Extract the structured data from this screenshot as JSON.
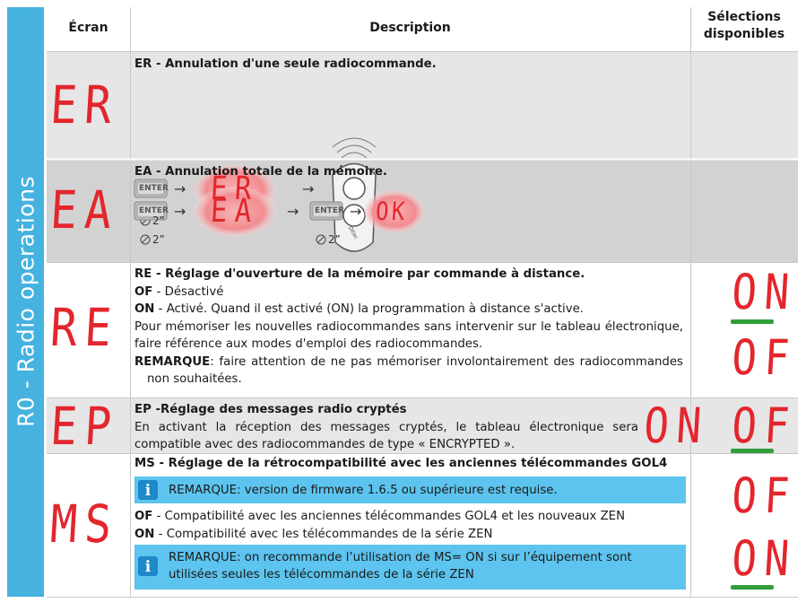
{
  "sidebar": {
    "title": "R0 - Radio operations"
  },
  "table": {
    "headers": [
      "Écran",
      "Description",
      "Sélections disponibles"
    ],
    "rows": [
      {
        "screen": "ER",
        "title": "ER - Annulation d'une seule radiocommande.",
        "diagram": {
          "button": "ENTER",
          "display": "ER",
          "timer": "2”",
          "remote_brand": "Ditec"
        }
      },
      {
        "screen": "EA",
        "title": "EA - Annulation totale de la mémoire.",
        "diagram": {
          "button": "ENTER",
          "display": "EA",
          "timer": "2”",
          "button2": "ENTER",
          "timer2": "2”",
          "result": "OK"
        }
      },
      {
        "screen": "RE",
        "title": "RE - Réglage d'ouverture de la mémoire par commande à distance.",
        "lines": [
          {
            "key": "OF",
            "text": " - Désactivé"
          },
          {
            "key": "ON",
            "text": " - Activé. Quand il est activé (ON) la programmation à distance s'active."
          }
        ],
        "paragraph": "Pour mémoriser les nouvelles radiocommandes sans intervenir sur le tableau électronique, faire référence aux modes d'emploi des radiocommandes.",
        "remark": {
          "key": "REMARQUE",
          "text": ": faire attention de ne pas mémoriser involontairement des radiocommandes non souhaitées."
        },
        "selections": [
          "ON",
          "OF"
        ]
      },
      {
        "screen": "EP",
        "title": "EP -Réglage des messages radio cryptés",
        "paragraph": "En activant la réception des messages cryptés, le tableau électronique sera compatible avec des radiocommandes de type « ENCRYPTED ».",
        "selections": [
          "ON",
          "OF"
        ]
      },
      {
        "screen": "MS",
        "title": "MS - Réglage de la rétrocompatibilité avec les anciennes télécommandes GOL4",
        "note1": {
          "key": "REMARQUE",
          "text": ": version de firmware 1.6.5 ou supérieure est requise."
        },
        "lines": [
          {
            "key": "OF",
            "text": " - Compatibilité avec les anciennes télécommandes GOL4 et les nouveaux ZEN"
          },
          {
            "key": "ON",
            "text": " - Compatibilité avec les télécommandes de la série ZEN"
          }
        ],
        "note2": {
          "key": "REMARQUE",
          "text": ": on recommande l’utilisation de MS= ON si sur l’équipement sont utilisées seules les télécommandes de la série ZEN"
        },
        "selections": [
          "OF",
          "ON"
        ]
      }
    ]
  }
}
